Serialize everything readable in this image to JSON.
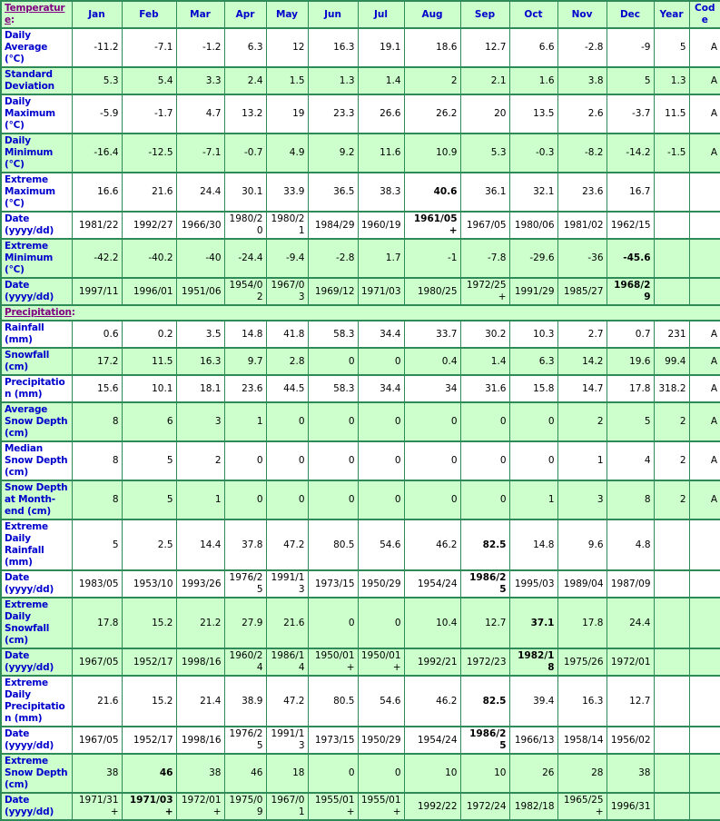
{
  "columns": [
    "Jan",
    "Feb",
    "Mar",
    "Apr",
    "May",
    "Jun",
    "Jul",
    "Aug",
    "Sep",
    "Oct",
    "Nov",
    "Dec",
    "Year",
    "Code"
  ],
  "colors": {
    "shaded_bg": "#ccffcc",
    "border": "#2e8b57",
    "label_text": "#0000cc",
    "section_link": "#800080",
    "data_text": "#000000"
  },
  "sections": [
    {
      "label": "Temperature",
      "label_suffix": ":",
      "rows": [
        {
          "label": "Daily Average (°C)",
          "shaded": false,
          "bold": [],
          "values": [
            "-11.2",
            "-7.1",
            "-1.2",
            "6.3",
            "12",
            "16.3",
            "19.1",
            "18.6",
            "12.7",
            "6.6",
            "-2.8",
            "-9",
            "5",
            "A"
          ]
        },
        {
          "label": "Standard Deviation",
          "shaded": true,
          "bold": [],
          "values": [
            "5.3",
            "5.4",
            "3.3",
            "2.4",
            "1.5",
            "1.3",
            "1.4",
            "2",
            "2.1",
            "1.6",
            "3.8",
            "5",
            "1.3",
            "A"
          ]
        },
        {
          "label": "Daily Maximum (°C)",
          "shaded": false,
          "bold": [],
          "values": [
            "-5.9",
            "-1.7",
            "4.7",
            "13.2",
            "19",
            "23.3",
            "26.6",
            "26.2",
            "20",
            "13.5",
            "2.6",
            "-3.7",
            "11.5",
            "A"
          ]
        },
        {
          "label": "Daily Minimum (°C)",
          "shaded": true,
          "bold": [],
          "values": [
            "-16.4",
            "-12.5",
            "-7.1",
            "-0.7",
            "4.9",
            "9.2",
            "11.6",
            "10.9",
            "5.3",
            "-0.3",
            "-8.2",
            "-14.2",
            "-1.5",
            "A"
          ]
        },
        {
          "label": "Extreme Maximum (°C)",
          "shaded": false,
          "bold": [
            7
          ],
          "values": [
            "16.6",
            "21.6",
            "24.4",
            "30.1",
            "33.9",
            "36.5",
            "38.3",
            "40.6",
            "36.1",
            "32.1",
            "23.6",
            "16.7",
            "",
            ""
          ]
        },
        {
          "label": "Date (yyyy/dd)",
          "shaded": false,
          "bold": [
            7
          ],
          "values": [
            "1981/22",
            "1992/27",
            "1966/30",
            "1980/20",
            "1980/21",
            "1984/29",
            "1960/19",
            "1961/05+",
            "1967/05",
            "1980/06",
            "1981/02",
            "1962/15",
            "",
            ""
          ]
        },
        {
          "label": "Extreme Minimum (°C)",
          "shaded": true,
          "bold": [
            11
          ],
          "values": [
            "-42.2",
            "-40.2",
            "-40",
            "-24.4",
            "-9.4",
            "-2.8",
            "1.7",
            "-1",
            "-7.8",
            "-29.6",
            "-36",
            "-45.6",
            "",
            ""
          ]
        },
        {
          "label": "Date (yyyy/dd)",
          "shaded": true,
          "bold": [
            11
          ],
          "values": [
            "1997/11",
            "1996/01",
            "1951/06",
            "1954/02",
            "1967/03",
            "1969/12",
            "1971/03",
            "1980/25",
            "1972/25+",
            "1991/29",
            "1985/27",
            "1968/29",
            "",
            ""
          ]
        }
      ]
    },
    {
      "label": "Precipitation",
      "label_suffix": ":",
      "rows": [
        {
          "label": "Rainfall (mm)",
          "shaded": false,
          "bold": [],
          "values": [
            "0.6",
            "0.2",
            "3.5",
            "14.8",
            "41.8",
            "58.3",
            "34.4",
            "33.7",
            "30.2",
            "10.3",
            "2.7",
            "0.7",
            "231",
            "A"
          ]
        },
        {
          "label": "Snowfall (cm)",
          "shaded": true,
          "bold": [],
          "values": [
            "17.2",
            "11.5",
            "16.3",
            "9.7",
            "2.8",
            "0",
            "0",
            "0.4",
            "1.4",
            "6.3",
            "14.2",
            "19.6",
            "99.4",
            "A"
          ]
        },
        {
          "label": "Precipitation (mm)",
          "shaded": false,
          "bold": [],
          "values": [
            "15.6",
            "10.1",
            "18.1",
            "23.6",
            "44.5",
            "58.3",
            "34.4",
            "34",
            "31.6",
            "15.8",
            "14.7",
            "17.8",
            "318.2",
            "A"
          ]
        },
        {
          "label": "Average Snow Depth (cm)",
          "shaded": true,
          "bold": [],
          "values": [
            "8",
            "6",
            "3",
            "1",
            "0",
            "0",
            "0",
            "0",
            "0",
            "0",
            "2",
            "5",
            "2",
            "A"
          ]
        },
        {
          "label": "Median Snow Depth (cm)",
          "shaded": false,
          "bold": [],
          "values": [
            "8",
            "5",
            "2",
            "0",
            "0",
            "0",
            "0",
            "0",
            "0",
            "0",
            "1",
            "4",
            "2",
            "A"
          ]
        },
        {
          "label": "Snow Depth at Month-end (cm)",
          "shaded": true,
          "bold": [],
          "values": [
            "8",
            "5",
            "1",
            "0",
            "0",
            "0",
            "0",
            "0",
            "0",
            "1",
            "3",
            "8",
            "2",
            "A"
          ]
        },
        {
          "label": "Extreme Daily Rainfall (mm)",
          "shaded": false,
          "bold": [
            8
          ],
          "values": [
            "5",
            "2.5",
            "14.4",
            "37.8",
            "47.2",
            "80.5",
            "54.6",
            "46.2",
            "82.5",
            "14.8",
            "9.6",
            "4.8",
            "",
            ""
          ]
        },
        {
          "label": "Date (yyyy/dd)",
          "shaded": false,
          "bold": [
            8
          ],
          "values": [
            "1983/05",
            "1953/10",
            "1993/26",
            "1976/25",
            "1991/13",
            "1973/15",
            "1950/29",
            "1954/24",
            "1986/25",
            "1995/03",
            "1989/04",
            "1987/09",
            "",
            ""
          ]
        },
        {
          "label": "Extreme Daily Snowfall (cm)",
          "shaded": true,
          "bold": [
            9
          ],
          "values": [
            "17.8",
            "15.2",
            "21.2",
            "27.9",
            "21.6",
            "0",
            "0",
            "10.4",
            "12.7",
            "37.1",
            "17.8",
            "24.4",
            "",
            ""
          ]
        },
        {
          "label": "Date (yyyy/dd)",
          "shaded": true,
          "bold": [
            9
          ],
          "values": [
            "1967/05",
            "1952/17",
            "1998/16",
            "1960/24",
            "1986/14",
            "1950/01+",
            "1950/01+",
            "1992/21",
            "1972/23",
            "1982/18",
            "1975/26",
            "1972/01",
            "",
            ""
          ]
        },
        {
          "label": "Extreme Daily Precipitation (mm)",
          "shaded": false,
          "bold": [
            8
          ],
          "values": [
            "21.6",
            "15.2",
            "21.4",
            "38.9",
            "47.2",
            "80.5",
            "54.6",
            "46.2",
            "82.5",
            "39.4",
            "16.3",
            "12.7",
            "",
            ""
          ]
        },
        {
          "label": "Date (yyyy/dd)",
          "shaded": false,
          "bold": [
            8
          ],
          "values": [
            "1967/05",
            "1952/17",
            "1998/16",
            "1976/25",
            "1991/13",
            "1973/15",
            "1950/29",
            "1954/24",
            "1986/25",
            "1966/13",
            "1958/14",
            "1956/02",
            "",
            ""
          ]
        },
        {
          "label": "Extreme Snow Depth (cm)",
          "shaded": true,
          "bold": [
            1
          ],
          "values": [
            "38",
            "46",
            "38",
            "46",
            "18",
            "0",
            "0",
            "10",
            "10",
            "26",
            "28",
            "38",
            "",
            ""
          ]
        },
        {
          "label": "Date (yyyy/dd)",
          "shaded": true,
          "bold": [
            1
          ],
          "values": [
            "1971/31+",
            "1971/03+",
            "1972/01+",
            "1975/09",
            "1967/01",
            "1955/01+",
            "1955/01+",
            "1992/22",
            "1972/24",
            "1982/18",
            "1965/25+",
            "1996/31",
            "",
            ""
          ]
        }
      ]
    }
  ]
}
